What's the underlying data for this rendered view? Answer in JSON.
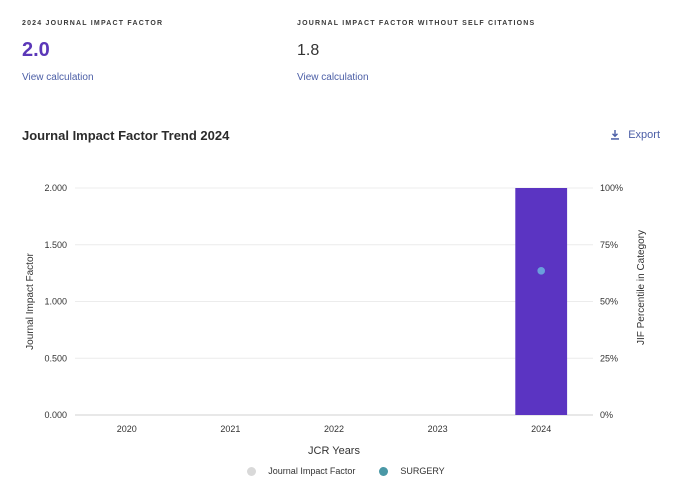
{
  "metrics": [
    {
      "label": "2024 JOURNAL IMPACT FACTOR",
      "value": "2.0",
      "link": "View calculation"
    },
    {
      "label": "JOURNAL IMPACT FACTOR WITHOUT SELF CITATIONS",
      "value": "1.8",
      "link": "View calculation"
    }
  ],
  "chart_title": "Journal Impact Factor Trend 2024",
  "export_label": "Export",
  "export_icon": "download-icon",
  "colors": {
    "accent": "#5b37b8",
    "link": "#4b5ea6",
    "bar": "#5b34c2",
    "point": "#6a9fdc",
    "jif_legend": "#d9d9d9",
    "category_legend": "#4a98a6"
  },
  "chart_data": {
    "type": "bar",
    "categories": [
      "2020",
      "2021",
      "2022",
      "2023",
      "2024"
    ],
    "xlabel": "JCR Years",
    "ylabel": "Journal Impact Factor",
    "y2label": "JIF Percentile in Category",
    "ylim": [
      0,
      2.0
    ],
    "y_ticks": [
      "0.000",
      "0.500",
      "1.000",
      "1.500",
      "2.000"
    ],
    "y2lim": [
      0,
      100
    ],
    "y2_ticks": [
      "0%",
      "25%",
      "50%",
      "75%",
      "100%"
    ],
    "grid": true,
    "series": [
      {
        "name": "Journal Impact Factor",
        "type": "bar",
        "values": [
          null,
          null,
          null,
          null,
          2.0
        ]
      },
      {
        "name": "SURGERY",
        "type": "scatter",
        "axis": "right",
        "values": [
          null,
          null,
          null,
          null,
          63.5
        ]
      }
    ],
    "legend": {
      "position": "bottom",
      "items": [
        "Journal Impact Factor",
        "SURGERY"
      ]
    }
  }
}
